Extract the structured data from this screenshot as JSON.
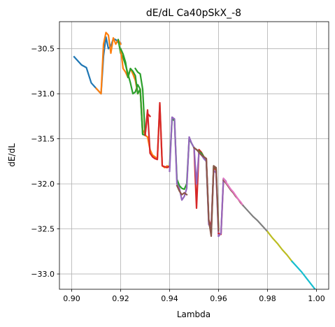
{
  "chart_data": {
    "type": "line",
    "title": "dE/dL Ca40pSkX_-8",
    "xlabel": "Lambda",
    "ylabel": "dE/dL",
    "xlim": [
      0.895,
      1.005
    ],
    "ylim": [
      -33.17,
      -30.2
    ],
    "xticks": [
      0.9,
      0.92,
      0.94,
      0.96,
      0.98,
      1.0
    ],
    "xtick_labels": [
      "0.90",
      "0.92",
      "0.94",
      "0.96",
      "0.98",
      "1.00"
    ],
    "yticks": [
      -30.5,
      -31.0,
      -31.5,
      -32.0,
      -32.5,
      -33.0
    ],
    "ytick_labels": [
      "−30.5",
      "−31.0",
      "−31.5",
      "−32.0",
      "−32.5",
      "−33.0"
    ],
    "grid": true,
    "series": [
      {
        "color": "#1f77b4",
        "x": [
          0.901,
          0.904,
          0.906,
          0.908,
          0.91
        ],
        "y": [
          -30.59,
          -30.68,
          -30.71,
          -30.88,
          -30.94
        ]
      },
      {
        "color": "#1f77b4",
        "x": [
          0.91,
          0.912,
          0.913,
          0.914,
          0.915,
          0.916,
          0.917,
          0.918,
          0.919,
          0.92
        ],
        "y": [
          -30.94,
          -31.0,
          -30.58,
          -30.37,
          -30.5,
          -30.47,
          -30.39,
          -30.4,
          -30.43,
          -30.44
        ]
      },
      {
        "color": "#ff7f0e",
        "x": [
          0.91,
          0.912,
          0.913,
          0.914,
          0.915,
          0.916,
          0.917,
          0.918,
          0.919,
          0.92
        ],
        "y": [
          -30.94,
          -31.0,
          -30.45,
          -30.32,
          -30.35,
          -30.55,
          -30.38,
          -30.45,
          -30.4,
          -30.45
        ]
      },
      {
        "color": "#2ca02c",
        "x": [
          0.919,
          0.92,
          0.921,
          0.922,
          0.923,
          0.924,
          0.925,
          0.926,
          0.927,
          0.928,
          0.929,
          0.93
        ],
        "y": [
          -30.4,
          -30.55,
          -30.6,
          -30.68,
          -30.78,
          -30.88,
          -31.0,
          -30.98,
          -30.9,
          -30.95,
          -31.45,
          -31.46
        ]
      },
      {
        "color": "#ff7f0e",
        "x": [
          0.92,
          0.921,
          0.922,
          0.923,
          0.924,
          0.925,
          0.926,
          0.927,
          0.928,
          0.929,
          0.93
        ],
        "y": [
          -30.5,
          -30.72,
          -30.76,
          -30.82,
          -30.72,
          -30.78,
          -30.85,
          -31.0,
          -30.95,
          -31.4,
          -31.45
        ]
      },
      {
        "color": "#2ca02c",
        "x": [
          0.92,
          0.921,
          0.922,
          0.923,
          0.924,
          0.925,
          0.926,
          0.927,
          0.928,
          0.929,
          0.93
        ],
        "y": [
          -30.5,
          -30.56,
          -30.65,
          -30.82,
          -30.72,
          -30.75,
          -30.8,
          -31.0,
          -30.95,
          -31.45,
          -31.46
        ]
      },
      {
        "color": "#2ca02c",
        "x": [
          0.926,
          0.927,
          0.928,
          0.929,
          0.93
        ],
        "y": [
          -30.72,
          -30.76,
          -30.78,
          -30.95,
          -31.46
        ]
      },
      {
        "color": "#ff7f0e",
        "x": [
          0.93,
          0.931,
          0.932,
          0.933,
          0.934,
          0.935,
          0.936,
          0.937,
          0.938,
          0.939,
          0.94
        ],
        "y": [
          -31.46,
          -31.48,
          -31.62,
          -31.68,
          -31.7,
          -31.72,
          -31.12,
          -31.8,
          -31.82,
          -31.8,
          -31.82
        ]
      },
      {
        "color": "#d62728",
        "x": [
          0.93,
          0.931,
          0.932,
          0.933,
          0.934,
          0.935,
          0.936,
          0.937,
          0.938,
          0.939,
          0.94
        ],
        "y": [
          -31.46,
          -31.18,
          -31.66,
          -31.7,
          -31.72,
          -31.73,
          -31.1,
          -31.8,
          -31.81,
          -31.82,
          -31.8
        ]
      },
      {
        "color": "#d62728",
        "x": [
          0.93,
          0.931,
          0.932
        ],
        "y": [
          -31.46,
          -31.22,
          -31.25
        ]
      },
      {
        "color": "#2ca02c",
        "x": [
          0.94,
          0.941,
          0.942,
          0.943,
          0.944,
          0.945,
          0.946,
          0.947,
          0.948,
          0.949,
          0.95
        ],
        "y": [
          -31.8,
          -31.28,
          -31.3,
          -31.95,
          -32.02,
          -32.05,
          -32.06,
          -32.0,
          -31.5,
          -31.55,
          -31.6
        ]
      },
      {
        "color": "#9467bd",
        "x": [
          0.94,
          0.941,
          0.942,
          0.943,
          0.944,
          0.945,
          0.946,
          0.947,
          0.948,
          0.949,
          0.95
        ],
        "y": [
          -31.86,
          -31.26,
          -31.28,
          -32.0,
          -32.05,
          -32.18,
          -32.14,
          -32.05,
          -31.48,
          -31.55,
          -31.6
        ]
      },
      {
        "color": "#8c564b",
        "x": [
          0.943,
          0.944,
          0.945,
          0.946,
          0.947
        ],
        "y": [
          -32.02,
          -32.08,
          -32.12,
          -32.1,
          -32.12
        ]
      },
      {
        "color": "#d62728",
        "x": [
          0.95,
          0.951,
          0.952,
          0.953,
          0.954,
          0.955,
          0.956,
          0.957,
          0.958,
          0.959,
          0.96
        ],
        "y": [
          -31.6,
          -32.27,
          -31.62,
          -31.65,
          -31.7,
          -31.72,
          -32.4,
          -32.48,
          -31.82,
          -31.85,
          -32.55
        ]
      },
      {
        "color": "#2ca02c",
        "x": [
          0.95,
          0.951,
          0.952,
          0.953,
          0.954,
          0.955,
          0.956,
          0.957,
          0.958,
          0.959,
          0.96
        ],
        "y": [
          -31.6,
          -31.62,
          -31.64,
          -31.66,
          -31.7,
          -31.75,
          -32.42,
          -32.55,
          -31.8,
          -31.83,
          -32.5
        ]
      },
      {
        "color": "#9467bd",
        "x": [
          0.95,
          0.951,
          0.952,
          0.953,
          0.954,
          0.955,
          0.956,
          0.957,
          0.958,
          0.959,
          0.96
        ],
        "y": [
          -31.6,
          -32.0,
          -31.65,
          -31.68,
          -31.72,
          -31.75,
          -32.45,
          -32.5,
          -31.85,
          -31.88,
          -32.58
        ]
      },
      {
        "color": "#8c564b",
        "x": [
          0.95,
          0.951,
          0.952,
          0.953,
          0.954,
          0.955,
          0.956,
          0.957,
          0.958,
          0.959,
          0.96
        ],
        "y": [
          -31.6,
          -31.62,
          -31.65,
          -31.68,
          -31.7,
          -31.72,
          -32.4,
          -32.58,
          -31.8,
          -31.82,
          -32.52
        ]
      },
      {
        "color": "#d62728",
        "x": [
          0.96,
          0.961,
          0.962,
          0.963
        ],
        "y": [
          -32.55,
          -32.56,
          -31.95,
          -31.98
        ]
      },
      {
        "color": "#9467bd",
        "x": [
          0.96,
          0.961,
          0.962,
          0.963
        ],
        "y": [
          -32.58,
          -32.55,
          -31.94,
          -31.97
        ]
      },
      {
        "color": "#8c564b",
        "x": [
          0.962,
          0.963,
          0.964,
          0.965,
          0.966,
          0.967,
          0.968,
          0.969,
          0.97
        ],
        "y": [
          -31.96,
          -31.99,
          -32.03,
          -32.07,
          -32.1,
          -32.14,
          -32.17,
          -32.21,
          -32.24
        ]
      },
      {
        "color": "#e377c2",
        "x": [
          0.962,
          0.963,
          0.964,
          0.965,
          0.966,
          0.967,
          0.968,
          0.969,
          0.97
        ],
        "y": [
          -31.94,
          -31.98,
          -32.02,
          -32.06,
          -32.09,
          -32.13,
          -32.17,
          -32.2,
          -32.24
        ]
      },
      {
        "color": "#7f7f7f",
        "x": [
          0.97,
          0.972,
          0.974,
          0.976,
          0.978,
          0.98
        ],
        "y": [
          -32.24,
          -32.3,
          -32.36,
          -32.41,
          -32.47,
          -32.53
        ]
      },
      {
        "color": "#bcbd22",
        "x": [
          0.98,
          0.982,
          0.984,
          0.986,
          0.988,
          0.99
        ],
        "y": [
          -32.53,
          -32.6,
          -32.66,
          -32.73,
          -32.79,
          -32.86
        ]
      },
      {
        "color": "#17becf",
        "x": [
          0.99,
          0.992,
          0.994,
          0.996,
          0.998,
          1.0
        ],
        "y": [
          -32.86,
          -32.92,
          -32.98,
          -33.05,
          -33.12,
          -33.19
        ]
      }
    ]
  }
}
